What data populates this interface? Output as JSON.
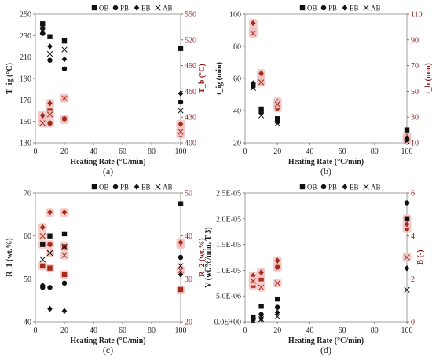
{
  "legend": [
    "OB",
    "PB",
    "EB",
    "AB"
  ],
  "chart_data": [
    {
      "type": "scatter",
      "caption": "(a)",
      "xlabel": "Heating Rate (°C/min)",
      "xlim": [
        0,
        100
      ],
      "xticks": [
        "0",
        "20",
        "40",
        "60",
        "80",
        "100"
      ],
      "ylabel_left": "T_ig (°C)",
      "ylim_left": [
        130,
        250
      ],
      "yticks_left": [
        "130",
        "150",
        "170",
        "190",
        "210",
        "230",
        "250"
      ],
      "ylabel_right": "T_b (°C)",
      "ylim_right": [
        400,
        550
      ],
      "yticks_right": [
        "400",
        "430",
        "460",
        "490",
        "520",
        "550"
      ],
      "series_left": [
        {
          "name": "OB",
          "points": [
            [
              5,
              241
            ],
            [
              10,
              229
            ],
            [
              20,
              225
            ],
            [
              100,
              218
            ]
          ]
        },
        {
          "name": "PB",
          "points": [
            [
              5,
              232
            ],
            [
              10,
              207
            ],
            [
              20,
              199
            ],
            [
              100,
              168
            ]
          ]
        },
        {
          "name": "EB",
          "points": [
            [
              5,
              237
            ],
            [
              10,
              220
            ],
            [
              20,
              208
            ],
            [
              100,
              176
            ]
          ]
        },
        {
          "name": "AB",
          "points": [
            [
              5,
              234
            ],
            [
              10,
              213
            ],
            [
              20,
              217
            ],
            [
              100,
              160
            ]
          ]
        }
      ],
      "series_right": [
        {
          "name": "OB",
          "points": [
            [
              5,
              430
            ],
            [
              10,
              437
            ],
            [
              20,
              427
            ],
            [
              100,
              420
            ]
          ]
        },
        {
          "name": "PB",
          "points": [
            [
              5,
              428
            ],
            [
              10,
              423
            ],
            [
              20,
              428
            ],
            [
              100,
              410
            ]
          ]
        },
        {
          "name": "EB",
          "points": [
            [
              5,
              432
            ],
            [
              10,
              446
            ],
            [
              20,
              452
            ],
            [
              100,
              422
            ]
          ]
        },
        {
          "name": "AB",
          "points": [
            [
              5,
              423
            ],
            [
              10,
              433
            ],
            [
              20,
              452
            ],
            [
              100,
              413
            ]
          ]
        }
      ]
    },
    {
      "type": "scatter",
      "caption": "(b)",
      "xlabel": "Heating Rate (°C/min)",
      "xlim": [
        0,
        100
      ],
      "xticks": [
        "0",
        "20",
        "40",
        "60",
        "80",
        "100"
      ],
      "ylabel_left": "t_ig (min)",
      "ylim_left": [
        20,
        100
      ],
      "yticks_left": [
        "20",
        "40",
        "60",
        "80",
        "100"
      ],
      "ylabel_right": "t_b (min)",
      "ylim_right": [
        10,
        110
      ],
      "yticks_right": [
        "10",
        "30",
        "50",
        "70",
        "90",
        "110"
      ],
      "series_left": [
        {
          "name": "OB",
          "points": [
            [
              5,
              56
            ],
            [
              10,
              41
            ],
            [
              20,
              35
            ],
            [
              100,
              28
            ]
          ]
        },
        {
          "name": "PB",
          "points": [
            [
              5,
              55
            ],
            [
              10,
              39
            ],
            [
              20,
              33
            ],
            [
              100,
              22
            ]
          ]
        },
        {
          "name": "EB",
          "points": [
            [
              5,
              57
            ],
            [
              10,
              40
            ],
            [
              20,
              34
            ],
            [
              100,
              23
            ]
          ]
        },
        {
          "name": "AB",
          "points": [
            [
              5,
              54
            ],
            [
              10,
              37
            ],
            [
              20,
              32
            ],
            [
              100,
              21
            ]
          ]
        }
      ],
      "series_right": [
        {
          "name": "OB",
          "points": [
            [
              5,
              97
            ],
            [
              10,
              60
            ],
            [
              20,
              39
            ],
            [
              100,
              14
            ]
          ]
        },
        {
          "name": "PB",
          "points": [
            [
              5,
              96
            ],
            [
              10,
              58
            ],
            [
              20,
              37
            ],
            [
              100,
              13
            ]
          ]
        },
        {
          "name": "EB",
          "points": [
            [
              5,
              103
            ],
            [
              10,
              64
            ],
            [
              20,
              42
            ],
            [
              100,
              15
            ]
          ]
        },
        {
          "name": "AB",
          "points": [
            [
              5,
              95
            ],
            [
              10,
              57
            ],
            [
              20,
              40
            ],
            [
              100,
              13
            ]
          ]
        }
      ]
    },
    {
      "type": "scatter",
      "caption": "(c)",
      "xlabel": "Heating Rate (°C/min)",
      "xlim": [
        0,
        100
      ],
      "xticks": [
        "0",
        "20",
        "40",
        "60",
        "80",
        "100"
      ],
      "ylabel_left": "R_1 (wt.%)",
      "ylim_left": [
        40,
        70
      ],
      "yticks_left": [
        "40",
        "50",
        "60",
        "70"
      ],
      "ylabel_right": "R_2 (wt.%)",
      "ylim_right": [
        20,
        50
      ],
      "yticks_right": [
        "20",
        "30",
        "40",
        "50"
      ],
      "series_left": [
        {
          "name": "OB",
          "points": [
            [
              5,
              58
            ],
            [
              10,
              60
            ],
            [
              20,
              60.5
            ],
            [
              100,
              67.5
            ]
          ]
        },
        {
          "name": "PB",
          "points": [
            [
              5,
              48
            ],
            [
              10,
              48
            ],
            [
              20,
              49
            ],
            [
              100,
              55
            ]
          ]
        },
        {
          "name": "EB",
          "points": [
            [
              5,
              48.5
            ],
            [
              10,
              43
            ],
            [
              20,
              42.5
            ],
            [
              100,
              51
            ]
          ]
        },
        {
          "name": "AB",
          "points": [
            [
              5,
              54.5
            ],
            [
              10,
              56
            ],
            [
              20,
              57.5
            ],
            [
              100,
              53
            ]
          ]
        }
      ],
      "series_right": [
        {
          "name": "OB",
          "points": [
            [
              5,
              33
            ],
            [
              10,
              32.5
            ],
            [
              20,
              31
            ],
            [
              100,
              27.5
            ]
          ]
        },
        {
          "name": "PB",
          "points": [
            [
              5,
              38
            ],
            [
              10,
              38
            ],
            [
              20,
              37.5
            ],
            [
              100,
              38
            ]
          ]
        },
        {
          "name": "EB",
          "points": [
            [
              5,
              42
            ],
            [
              10,
              45.5
            ],
            [
              20,
              45.5
            ],
            [
              100,
              38.5
            ]
          ]
        },
        {
          "name": "AB",
          "points": [
            [
              5,
              40
            ],
            [
              10,
              36
            ],
            [
              20,
              35.5
            ],
            [
              100,
              32
            ]
          ]
        }
      ]
    },
    {
      "type": "scatter",
      "caption": "(d)",
      "xlabel": "Heating Rate (°C/min)",
      "xlim": [
        0,
        100
      ],
      "xticks": [
        "0",
        "20",
        "40",
        "60",
        "80",
        "100"
      ],
      "ylabel_left": "V (wt.%/min. T 3)",
      "ylim_left": [
        0,
        2.5e-05
      ],
      "yticks_left": [
        "0.0E+00",
        "5.0E-06",
        "1.0E-05",
        "1.5E-05",
        "2.0E-05",
        "2.5E-05"
      ],
      "ylabel_right": "B (-)",
      "ylim_right": [
        0,
        6
      ],
      "yticks_right": [
        "0",
        "2",
        "4",
        "6"
      ],
      "series_left": [
        {
          "name": "OB",
          "points": [
            [
              5,
              9e-07
            ],
            [
              10,
              3e-06
            ],
            [
              20,
              4.4e-06
            ],
            [
              100,
              2e-05
            ]
          ]
        },
        {
          "name": "PB",
          "points": [
            [
              5,
              6e-07
            ],
            [
              10,
              1.4e-06
            ],
            [
              20,
              2.8e-06
            ],
            [
              100,
              2.31e-05
            ]
          ]
        },
        {
          "name": "EB",
          "points": [
            [
              5,
              3e-07
            ],
            [
              10,
              6e-07
            ],
            [
              20,
              1.8e-06
            ],
            [
              100,
              1.04e-05
            ]
          ]
        },
        {
          "name": "AB",
          "points": [
            [
              5,
              2e-07
            ],
            [
              10,
              5e-07
            ],
            [
              20,
              1e-06
            ],
            [
              100,
              6.2e-06
            ]
          ]
        }
      ],
      "series_right": [
        {
          "name": "OB",
          "points": [
            [
              5,
              1.7
            ],
            [
              10,
              2.0
            ],
            [
              20,
              2.55
            ],
            [
              100,
              4.8
            ]
          ]
        },
        {
          "name": "PB",
          "points": [
            [
              5,
              1.9
            ],
            [
              10,
              2.25
            ],
            [
              20,
              2.55
            ],
            [
              100,
              4.35
            ]
          ]
        },
        {
          "name": "EB",
          "points": [
            [
              5,
              2.15
            ],
            [
              10,
              2.3
            ],
            [
              20,
              2.85
            ],
            [
              100,
              4.55
            ]
          ]
        },
        {
          "name": "AB",
          "points": [
            [
              5,
              1.9
            ],
            [
              10,
              1.6
            ],
            [
              20,
              1.8
            ],
            [
              100,
              3.0
            ]
          ]
        }
      ]
    }
  ]
}
